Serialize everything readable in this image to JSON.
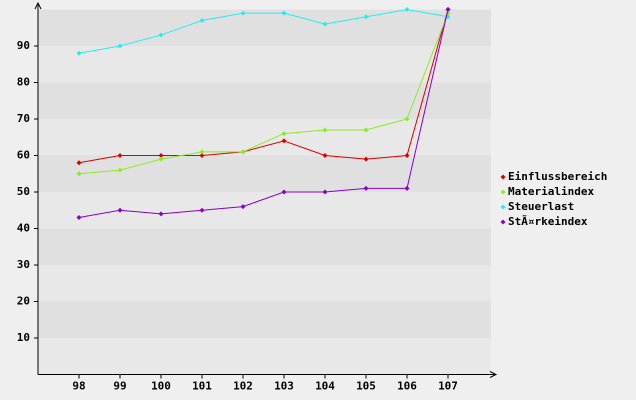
{
  "chart_data": {
    "type": "line",
    "categories": [
      "98",
      "99",
      "100",
      "101",
      "102",
      "103",
      "104",
      "105",
      "106",
      "107"
    ],
    "series": [
      {
        "name": "Einflussbereich",
        "color": "#dd0000",
        "values": [
          58,
          60,
          60,
          60,
          61,
          64,
          60,
          59,
          60,
          100
        ]
      },
      {
        "name": "Materialindex",
        "color": "#88ee22",
        "values": [
          55,
          56,
          59,
          61,
          61,
          66,
          67,
          67,
          70,
          99
        ]
      },
      {
        "name": "Steuerlast",
        "color": "#22eeee",
        "values": [
          88,
          90,
          93,
          97,
          99,
          99,
          96,
          98,
          100,
          98
        ]
      },
      {
        "name": "StÃ¤rkeindex",
        "color": "#8800cc",
        "values": [
          43,
          45,
          44,
          45,
          46,
          50,
          50,
          51,
          51,
          100
        ]
      }
    ],
    "ylim": [
      0,
      100
    ],
    "yticks": [
      10,
      20,
      30,
      40,
      50,
      60,
      70,
      80,
      90
    ],
    "grid": true,
    "legend": "right"
  }
}
